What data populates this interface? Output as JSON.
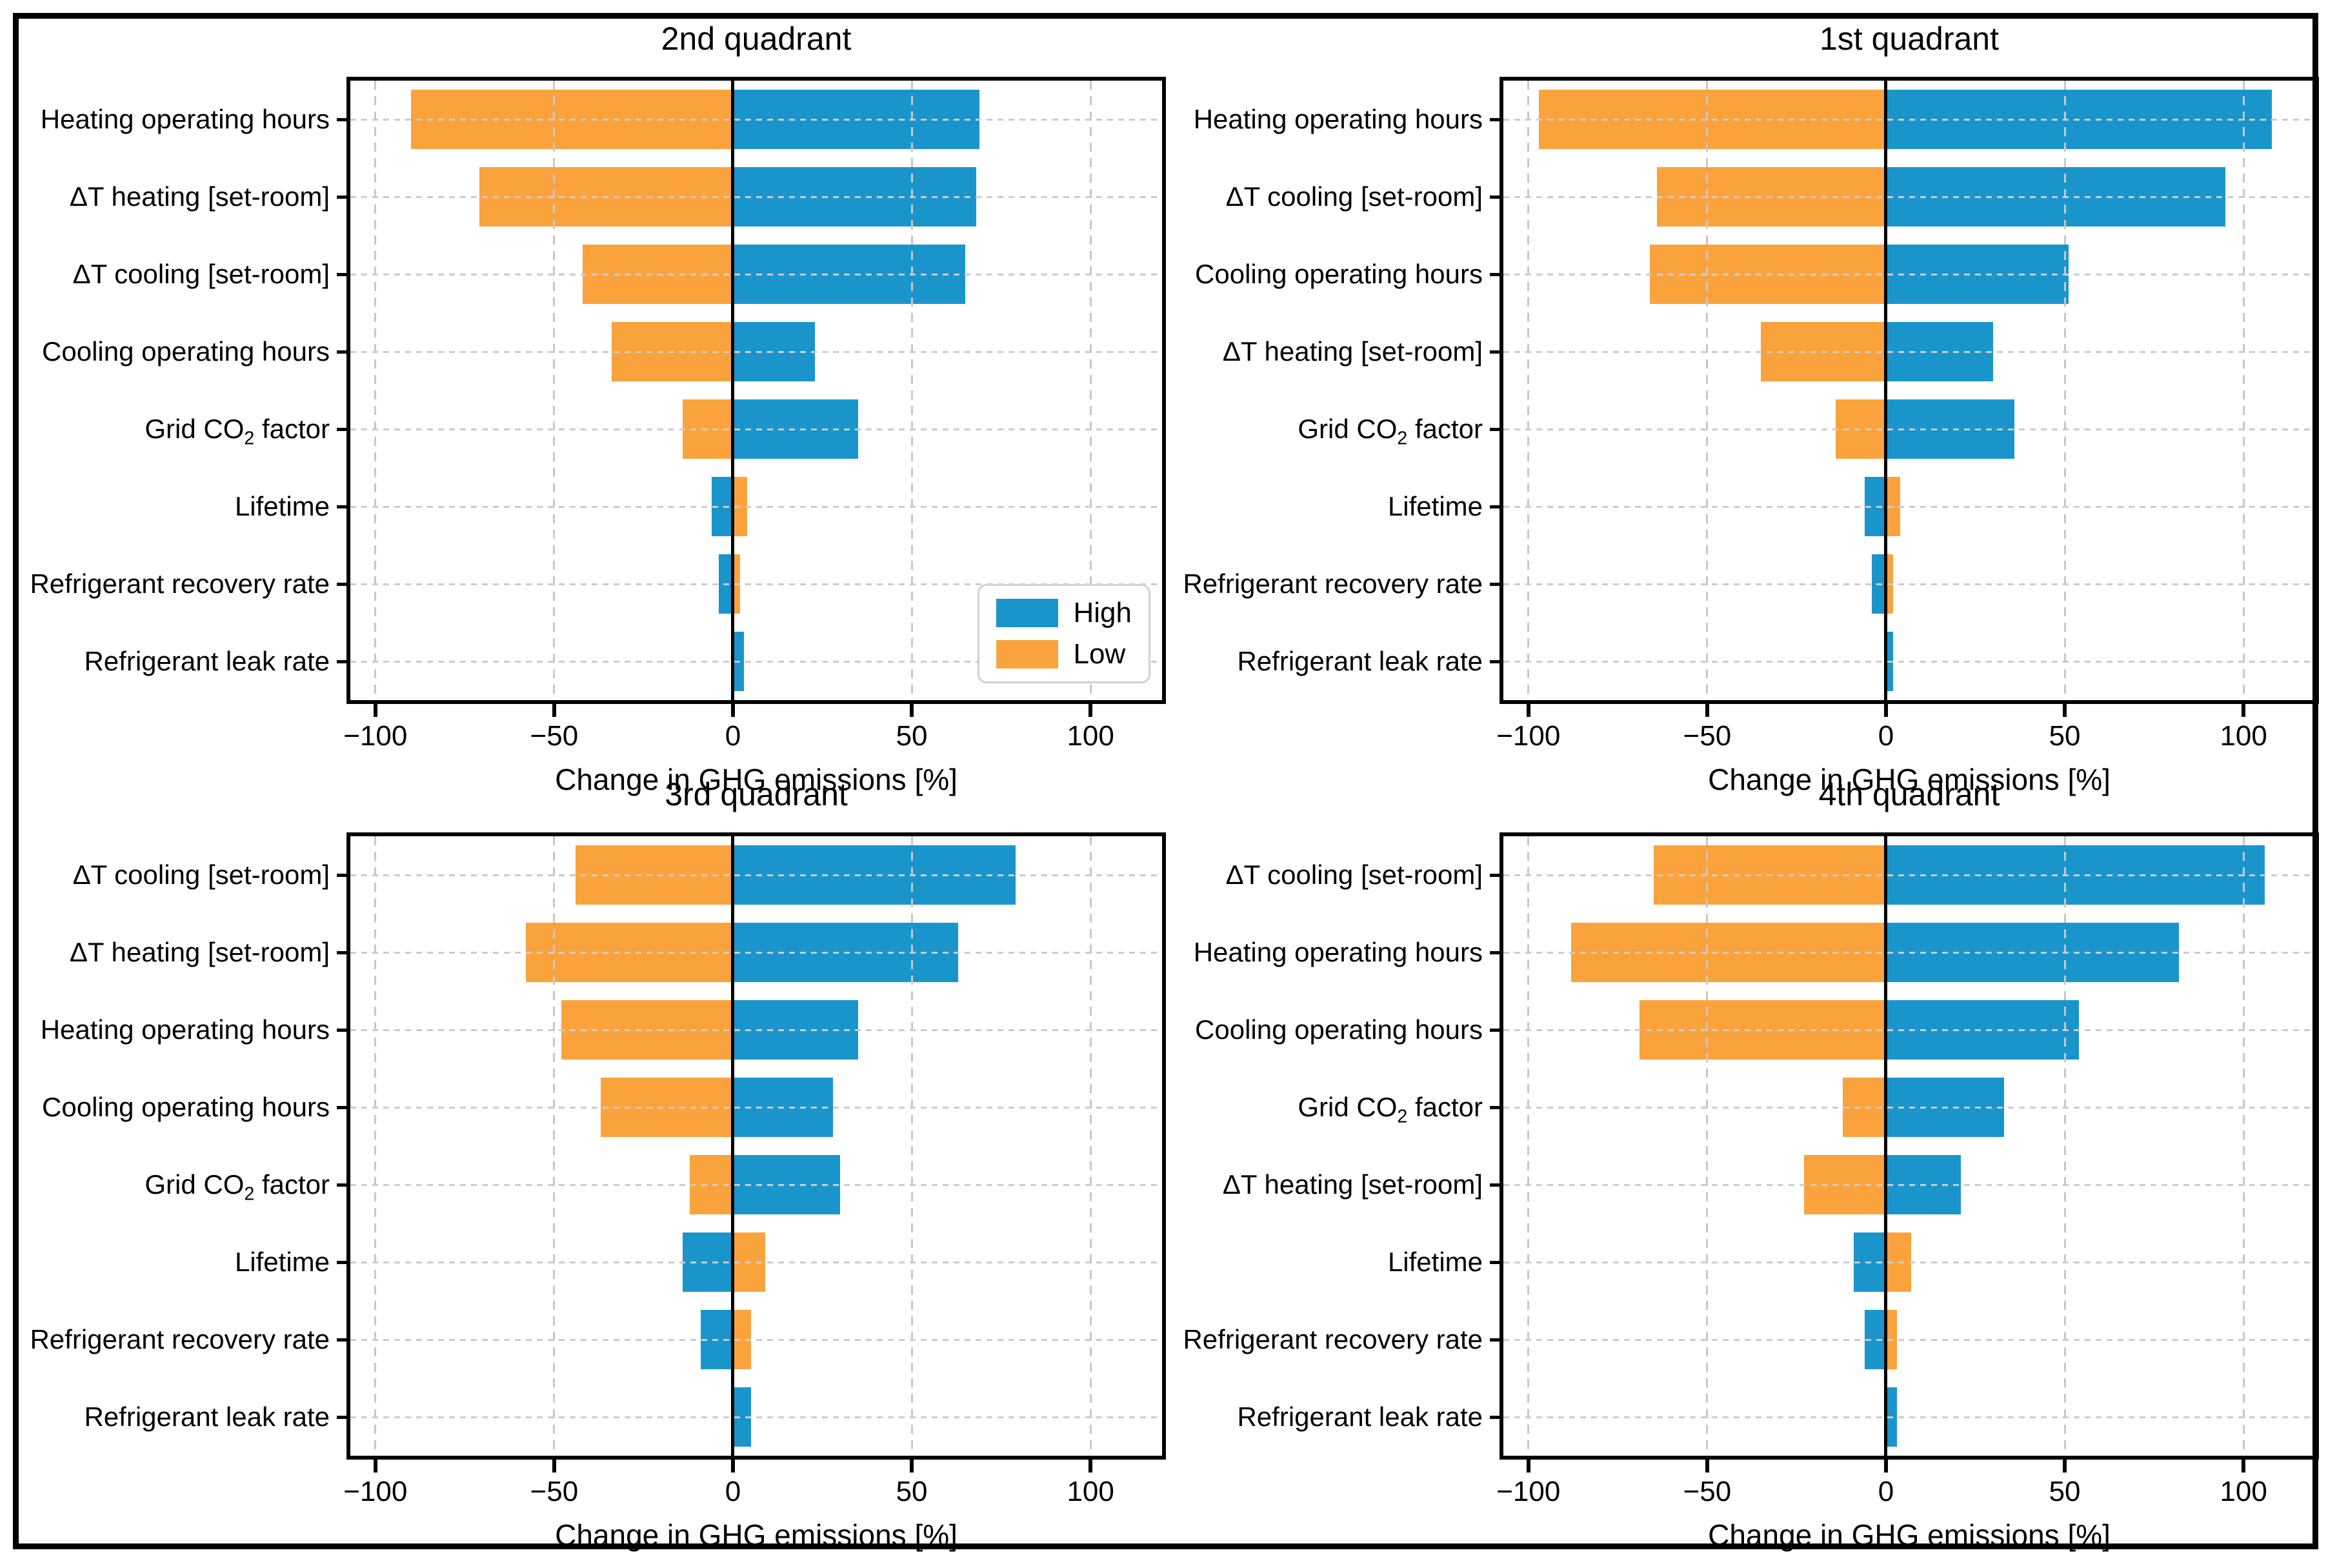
{
  "figure": {
    "xlabel": "Change in GHG emissions [%]",
    "xlim": [
      -107,
      120
    ],
    "x_ticks": {
      "values": [
        -100,
        -50,
        0,
        50,
        100
      ],
      "labels": [
        "−100",
        "−50",
        "0",
        "50",
        "100"
      ]
    },
    "colors": {
      "high": "#1a95cb",
      "low": "#faa33c",
      "grid": "#c7c7c7",
      "zero_line": "#000000",
      "frame": "#000000",
      "legend_border": "#d2d2d2"
    },
    "legend": {
      "location": "lower right of 2nd quadrant panel",
      "entries": [
        {
          "label": "High",
          "key": "high"
        },
        {
          "label": "Low",
          "key": "low"
        }
      ]
    }
  },
  "chart_data": [
    {
      "type": "bar",
      "orientation": "horizontal",
      "title": "2nd quadrant",
      "xlabel": "Change in GHG emissions [%]",
      "xlim": [
        -107,
        120
      ],
      "grid": true,
      "has_legend": true,
      "categories": [
        "Heating operating hours",
        "ΔT heating [set-room]",
        "ΔT cooling [set-room]",
        "Cooling operating hours",
        "Grid CO2 factor",
        "Lifetime",
        "Refrigerant recovery rate",
        "Refrigerant leak rate"
      ],
      "series": [
        {
          "name": "High",
          "key": "high",
          "values": [
            69,
            68,
            65,
            23,
            35,
            -6,
            -4,
            3
          ]
        },
        {
          "name": "Low",
          "key": "low",
          "values": [
            -90,
            -71,
            -42,
            -34,
            -14,
            4,
            2,
            0
          ]
        }
      ]
    },
    {
      "type": "bar",
      "orientation": "horizontal",
      "title": "1st quadrant",
      "xlabel": "Change in GHG emissions [%]",
      "xlim": [
        -107,
        120
      ],
      "grid": true,
      "has_legend": false,
      "categories": [
        "Heating operating hours",
        "ΔT cooling [set-room]",
        "Cooling operating hours",
        "ΔT heating [set-room]",
        "Grid CO2 factor",
        "Lifetime",
        "Refrigerant recovery rate",
        "Refrigerant leak rate"
      ],
      "series": [
        {
          "name": "High",
          "key": "high",
          "values": [
            108,
            95,
            51,
            30,
            36,
            -6,
            -4,
            2
          ]
        },
        {
          "name": "Low",
          "key": "low",
          "values": [
            -97,
            -64,
            -66,
            -35,
            -14,
            4,
            2,
            0
          ]
        }
      ]
    },
    {
      "type": "bar",
      "orientation": "horizontal",
      "title": "3rd quadrant",
      "xlabel": "Change in GHG emissions [%]",
      "xlim": [
        -107,
        120
      ],
      "grid": true,
      "has_legend": false,
      "categories": [
        "ΔT cooling [set-room]",
        "ΔT heating [set-room]",
        "Heating operating hours",
        "Cooling operating hours",
        "Grid CO2 factor",
        "Lifetime",
        "Refrigerant recovery rate",
        "Refrigerant leak rate"
      ],
      "series": [
        {
          "name": "High",
          "key": "high",
          "values": [
            79,
            63,
            35,
            28,
            30,
            -14,
            -9,
            5
          ]
        },
        {
          "name": "Low",
          "key": "low",
          "values": [
            -44,
            -58,
            -48,
            -37,
            -12,
            9,
            5,
            0
          ]
        }
      ]
    },
    {
      "type": "bar",
      "orientation": "horizontal",
      "title": "4th quadrant",
      "xlabel": "Change in GHG emissions [%]",
      "xlim": [
        -107,
        120
      ],
      "grid": true,
      "has_legend": false,
      "categories": [
        "ΔT cooling [set-room]",
        "Heating operating hours",
        "Cooling operating hours",
        "Grid CO2 factor",
        "ΔT heating [set-room]",
        "Lifetime",
        "Refrigerant recovery rate",
        "Refrigerant leak rate"
      ],
      "series": [
        {
          "name": "High",
          "key": "high",
          "values": [
            106,
            82,
            54,
            33,
            21,
            -9,
            -6,
            3
          ]
        },
        {
          "name": "Low",
          "key": "low",
          "values": [
            -65,
            -88,
            -69,
            -12,
            -23,
            7,
            3,
            0
          ]
        }
      ]
    }
  ]
}
